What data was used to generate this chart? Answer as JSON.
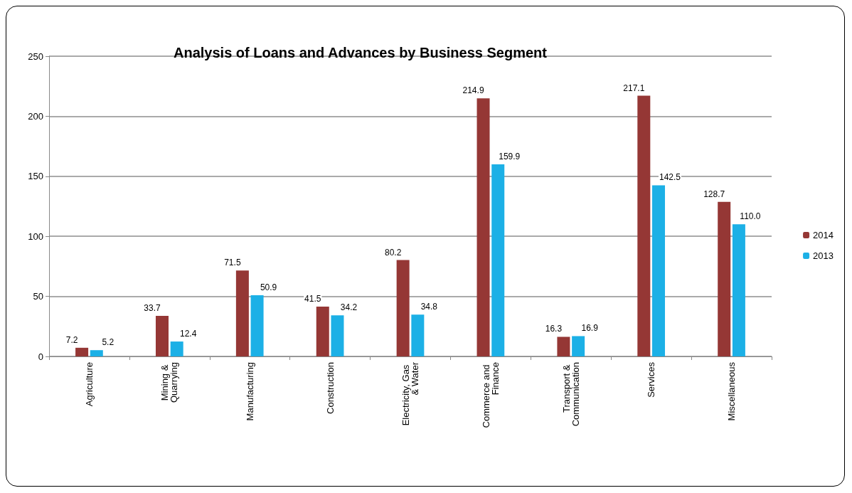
{
  "chart_data": {
    "type": "bar",
    "title": "Analysis of Loans and Advances by Business Segment",
    "categories": [
      "Agriculture",
      "Mining & Quarrying",
      "Manufacturing",
      "Construction",
      "Electricity, Gas & Water",
      "Commerce and Finance",
      "Transport & Communication",
      "Services",
      "Miscellaneous"
    ],
    "series": [
      {
        "name": "2014",
        "color": "#953735",
        "values": [
          7.2,
          33.7,
          71.5,
          41.5,
          80.2,
          214.9,
          16.3,
          217.1,
          128.7
        ],
        "value_labels": [
          "7.2",
          "33.7",
          "71.5",
          "41.5",
          "80.2",
          "214.9",
          "16.3",
          "217.1",
          "128.7"
        ]
      },
      {
        "name": "2013",
        "color": "#1cb0e6",
        "values": [
          5.2,
          12.4,
          50.9,
          34.2,
          34.8,
          159.9,
          16.9,
          142.5,
          110.0
        ],
        "value_labels": [
          "5.2",
          "12.4",
          "50.9",
          "34.2",
          "34.8",
          "159.9",
          "16.9",
          "142.5",
          "110.0"
        ]
      }
    ],
    "ylim": [
      0,
      250
    ],
    "yticks": [
      0,
      50,
      100,
      150,
      200,
      250
    ],
    "grid": "y",
    "legend": "right"
  }
}
